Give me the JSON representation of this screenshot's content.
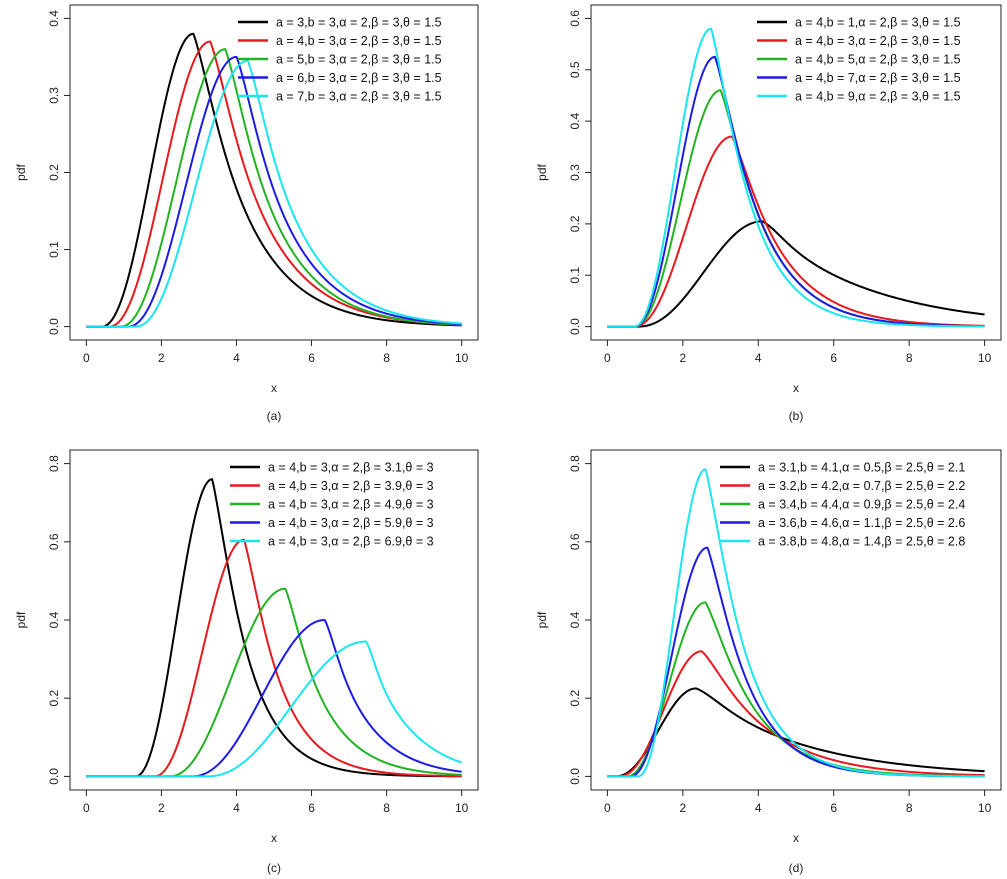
{
  "chart_data": [
    {
      "type": "line",
      "panel": "a",
      "caption": "(a)",
      "xlabel": "x",
      "ylabel": "pdf",
      "xlim": [
        0,
        10
      ],
      "ylim": [
        0,
        0.4
      ],
      "xticks": [
        "0",
        "2",
        "4",
        "6",
        "8",
        "10"
      ],
      "yticks": [
        "0.0",
        "0.1",
        "0.2",
        "0.3",
        "0.4"
      ],
      "legend_position": "top-right",
      "series": [
        {
          "name": "a = 3,b = 3,α = 2,β = 3,θ = 1.5",
          "color": "#000000",
          "peak_x": 2.85,
          "peak_y": 0.38,
          "x_start": 0.4,
          "y_end": 0.002
        },
        {
          "name": "a = 4,b = 3,α = 2,β = 3,θ = 1.5",
          "color": "#e8191c",
          "peak_x": 3.3,
          "peak_y": 0.37,
          "x_start": 0.6,
          "y_end": 0.003
        },
        {
          "name": "a = 5,b = 3,α = 2,β = 3,θ = 1.5",
          "color": "#22b322",
          "peak_x": 3.7,
          "peak_y": 0.36,
          "x_start": 0.9,
          "y_end": 0.003
        },
        {
          "name": "a = 6,b = 3,α = 2,β = 3,θ = 1.5",
          "color": "#1c1ce6",
          "peak_x": 4.0,
          "peak_y": 0.35,
          "x_start": 1.1,
          "y_end": 0.004
        },
        {
          "name": "a = 7,b = 3,α = 2,β = 3,θ = 1.5",
          "color": "#19e6ee",
          "peak_x": 4.3,
          "peak_y": 0.345,
          "x_start": 1.3,
          "y_end": 0.005
        }
      ]
    },
    {
      "type": "line",
      "panel": "b",
      "caption": "(b)",
      "xlabel": "x",
      "ylabel": "pdf",
      "xlim": [
        0,
        10
      ],
      "ylim": [
        0,
        0.6
      ],
      "xticks": [
        "0",
        "2",
        "4",
        "6",
        "8",
        "10"
      ],
      "yticks": [
        "0.0",
        "0.1",
        "0.2",
        "0.3",
        "0.4",
        "0.5",
        "0.6"
      ],
      "legend_position": "top-right",
      "series": [
        {
          "name": "a = 4,b = 1,α = 2,β = 3,θ = 1.5",
          "color": "#000000",
          "peak_x": 4.1,
          "peak_y": 0.205,
          "x_start": 0.8,
          "y_end": 0.03
        },
        {
          "name": "a = 4,b = 3,α = 2,β = 3,θ = 1.5",
          "color": "#e8191c",
          "peak_x": 3.3,
          "peak_y": 0.37,
          "x_start": 0.7,
          "y_end": 0.002
        },
        {
          "name": "a = 4,b = 5,α = 2,β = 3,θ = 1.5",
          "color": "#22b322",
          "peak_x": 3.0,
          "peak_y": 0.46,
          "x_start": 0.7,
          "y_end": 0.001
        },
        {
          "name": "a = 4,b = 7,α = 2,β = 3,θ = 1.5",
          "color": "#1c1ce6",
          "peak_x": 2.85,
          "peak_y": 0.525,
          "x_start": 0.7,
          "y_end": 0.001
        },
        {
          "name": "a = 4,b = 9,α = 2,β = 3,θ = 1.5",
          "color": "#19e6ee",
          "peak_x": 2.75,
          "peak_y": 0.58,
          "x_start": 0.7,
          "y_end": 0.0
        }
      ]
    },
    {
      "type": "line",
      "panel": "c",
      "caption": "(c)",
      "xlabel": "x",
      "ylabel": "pdf",
      "xlim": [
        0,
        10
      ],
      "ylim": [
        0,
        0.8
      ],
      "xticks": [
        "0",
        "2",
        "4",
        "6",
        "8",
        "10"
      ],
      "yticks": [
        "0.0",
        "0.2",
        "0.4",
        "0.6",
        "0.8"
      ],
      "legend_position": "top-right",
      "series": [
        {
          "name": "a = 4,b = 3,α = 2,β = 3.1,θ = 3",
          "color": "#000000",
          "peak_x": 3.35,
          "peak_y": 0.76,
          "x_start": 1.3,
          "y_end": 0.0
        },
        {
          "name": "a = 4,b = 3,α = 2,β = 3.9,θ = 3",
          "color": "#e8191c",
          "peak_x": 4.2,
          "peak_y": 0.605,
          "x_start": 1.8,
          "y_end": 0.001
        },
        {
          "name": "a = 4,b = 3,α = 2,β = 4.9,θ = 3",
          "color": "#22b322",
          "peak_x": 5.3,
          "peak_y": 0.48,
          "x_start": 2.2,
          "y_end": 0.005
        },
        {
          "name": "a = 4,b = 3,α = 2,β = 5.9,θ = 3",
          "color": "#1c1ce6",
          "peak_x": 6.35,
          "peak_y": 0.4,
          "x_start": 2.8,
          "y_end": 0.015
        },
        {
          "name": "a = 4,b = 3,α = 2,β = 6.9,θ = 3",
          "color": "#19e6ee",
          "peak_x": 7.45,
          "peak_y": 0.345,
          "x_start": 3.2,
          "y_end": 0.045
        }
      ]
    },
    {
      "type": "line",
      "panel": "d",
      "caption": "(d)",
      "xlabel": "x",
      "ylabel": "pdf",
      "xlim": [
        0,
        10
      ],
      "ylim": [
        0,
        0.8
      ],
      "xticks": [
        "0",
        "2",
        "4",
        "6",
        "8",
        "10"
      ],
      "yticks": [
        "0.0",
        "0.2",
        "0.4",
        "0.6",
        "0.8"
      ],
      "legend_position": "top-right",
      "series": [
        {
          "name": "a = 3.1,b = 4.1,α = 0.5,β = 2.5,θ = 2.1",
          "color": "#000000",
          "peak_x": 2.35,
          "peak_y": 0.225,
          "x_start": 0.2,
          "y_end": 0.017
        },
        {
          "name": "a = 3.2,b = 4.2,α = 0.7,β = 2.5,θ = 2.2",
          "color": "#e8191c",
          "peak_x": 2.5,
          "peak_y": 0.32,
          "x_start": 0.3,
          "y_end": 0.004
        },
        {
          "name": "a = 3.4,b = 4.4,α = 0.9,β = 2.5,θ = 2.4",
          "color": "#22b322",
          "peak_x": 2.6,
          "peak_y": 0.445,
          "x_start": 0.5,
          "y_end": 0.001
        },
        {
          "name": "a = 3.6,b = 4.6,α = 1.1,β = 2.5,θ = 2.6",
          "color": "#1c1ce6",
          "peak_x": 2.65,
          "peak_y": 0.585,
          "x_start": 0.6,
          "y_end": 0.0
        },
        {
          "name": "a = 3.8,b = 4.8,α = 1.4,β = 2.5,θ = 2.8",
          "color": "#19e6ee",
          "peak_x": 2.6,
          "peak_y": 0.785,
          "x_start": 0.8,
          "y_end": 0.0
        }
      ]
    }
  ]
}
